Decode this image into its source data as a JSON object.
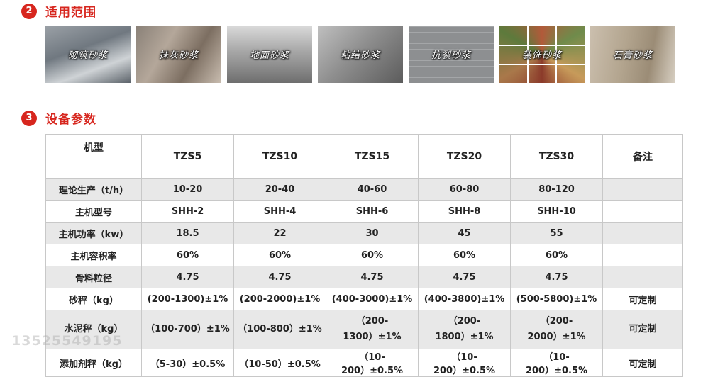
{
  "section_apply": {
    "number": "2",
    "title": "适用范围"
  },
  "gallery": [
    {
      "caption": "砌筑砂浆"
    },
    {
      "caption": "抹灰砂浆"
    },
    {
      "caption": "地面砂浆"
    },
    {
      "caption": "粘结砂浆"
    },
    {
      "caption": "抗裂砂浆"
    },
    {
      "caption": "装饰砂浆"
    },
    {
      "caption": "石膏砂浆"
    }
  ],
  "section_params": {
    "number": "3",
    "title": "设备参数"
  },
  "table": {
    "header": [
      "机型",
      "TZS5",
      "TZS10",
      "TZS15",
      "TZS20",
      "TZS30",
      "备注"
    ],
    "rows": [
      {
        "label": "理论生产（t/h）",
        "values": [
          "10-20",
          "20-40",
          "40-60",
          "60-80",
          "80-120"
        ],
        "note": ""
      },
      {
        "label": "主机型号",
        "values": [
          "SHH-2",
          "SHH-4",
          "SHH-6",
          "SHH-8",
          "SHH-10"
        ],
        "note": ""
      },
      {
        "label": "主机功率（kw）",
        "values": [
          "18.5",
          "22",
          "30",
          "45",
          "55"
        ],
        "note": ""
      },
      {
        "label": "主机容积率",
        "values": [
          "60%",
          "60%",
          "60%",
          "60%",
          "60%"
        ],
        "note": ""
      },
      {
        "label": "骨料粒径",
        "values": [
          "4.75",
          "4.75",
          "4.75",
          "4.75",
          "4.75"
        ],
        "note": ""
      },
      {
        "label": "砂秤（kg）",
        "values": [
          "(200-1300)±1%",
          "(200-2000)±1%",
          "(400-3000)±1%",
          "(400-3800)±1%",
          "(500-5800)±1%"
        ],
        "note": "可定制"
      },
      {
        "label": "水泥秤（kg）",
        "values": [
          "（100-700）±1%",
          "（100-800）±1%",
          "（200-\n1300）±1%",
          "（200-\n1800）±1%",
          "（200-\n2000）±1%"
        ],
        "note": "可定制"
      },
      {
        "label": "添加剂秤（kg）",
        "values": [
          "（5-30）±0.5%",
          "（10-50）±0.5%",
          "（10-200）±0.5%",
          "（10-200）±0.5%",
          "（10-200）±0.5%"
        ],
        "note": "可定制"
      }
    ]
  },
  "watermark": {
    "phone": "13525549195"
  },
  "colors": {
    "accent": "#d7261e",
    "row_gray": "#e8e8e8",
    "border": "#c8c8c8"
  }
}
